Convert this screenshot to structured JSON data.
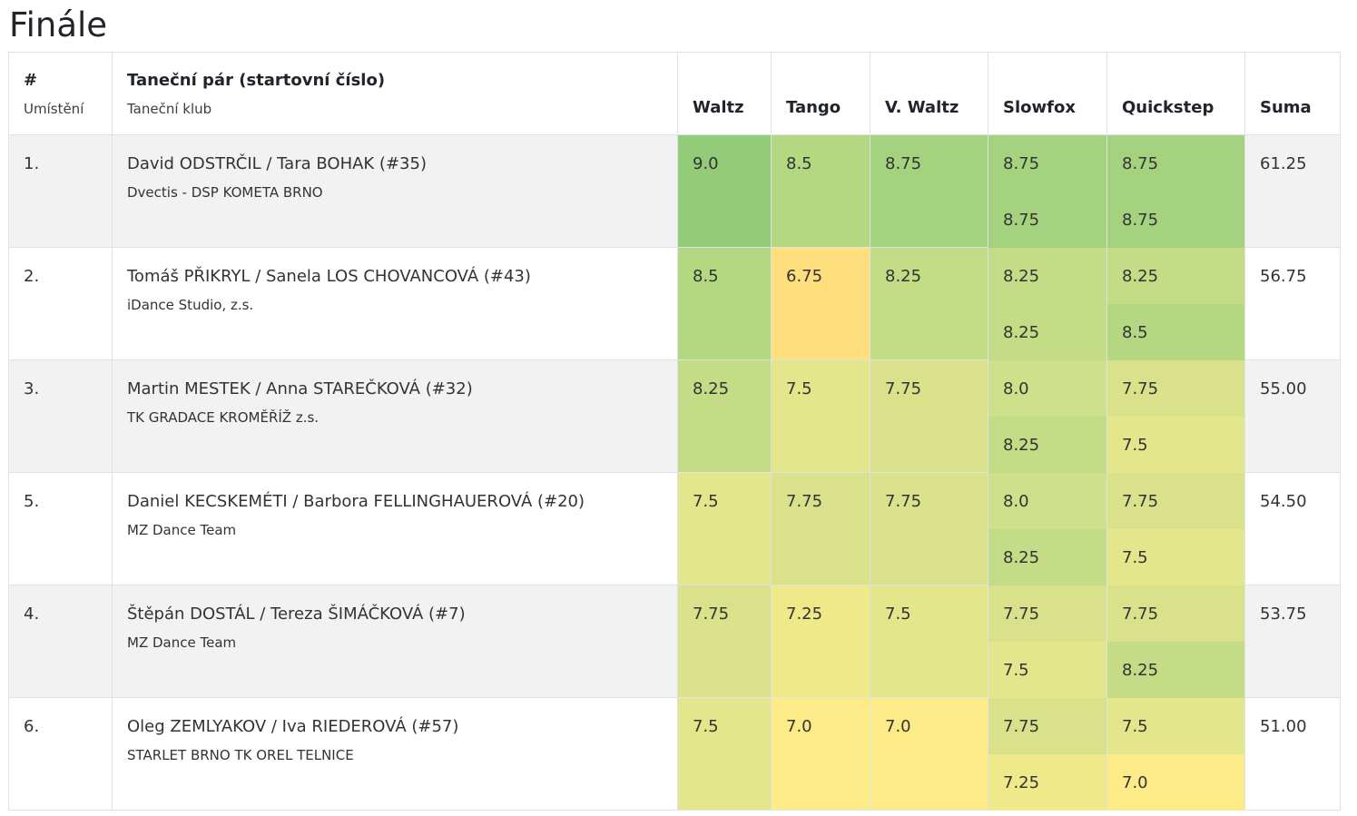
{
  "title": "Finále",
  "header": {
    "place_label": "#",
    "place_sub": "Umístění",
    "pair_label": "Taneční pár (startovní číslo)",
    "pair_sub": "Taneční klub",
    "dances": [
      "Waltz",
      "Tango",
      "V. Waltz",
      "Slowfox",
      "Quickstep"
    ],
    "sum_label": "Suma"
  },
  "colors": {
    "9.0": "#93cb78",
    "8.75": "#a5d27f",
    "8.5": "#b4d882",
    "8.25": "#c3dc85",
    "8.0": "#cfe08a",
    "7.75": "#d9e28a",
    "7.5": "#e3e68a",
    "7.25": "#f0e989",
    "7.0": "#fdeb88",
    "6.75": "#ffdf7d"
  },
  "rows": [
    {
      "rank": "1.",
      "pair": "David ODSTRČIL / Tara BOHAK (#35)",
      "club": "Dvectis - DSP KOMETA BRNO",
      "scores": [
        [
          "9.0"
        ],
        [
          "8.5"
        ],
        [
          "8.75"
        ],
        [
          "8.75",
          "8.75"
        ],
        [
          "8.75",
          "8.75"
        ]
      ],
      "sum": "61.25"
    },
    {
      "rank": "2.",
      "pair": "Tomáš PŘIKRYL / Sanela LOS CHOVANCOVÁ (#43)",
      "club": "iDance Studio, z.s.",
      "scores": [
        [
          "8.5"
        ],
        [
          "6.75"
        ],
        [
          "8.25"
        ],
        [
          "8.25",
          "8.25"
        ],
        [
          "8.25",
          "8.5"
        ]
      ],
      "sum": "56.75"
    },
    {
      "rank": "3.",
      "pair": "Martin MESTEK / Anna STAREČKOVÁ (#32)",
      "club": "TK GRADACE KROMĚŘÍŽ z.s.",
      "scores": [
        [
          "8.25"
        ],
        [
          "7.5"
        ],
        [
          "7.75"
        ],
        [
          "8.0",
          "8.25"
        ],
        [
          "7.75",
          "7.5"
        ]
      ],
      "sum": "55.00"
    },
    {
      "rank": "5.",
      "pair": "Daniel KECSKEMÉTI / Barbora FELLINGHAUEROVÁ (#20)",
      "club": "MZ Dance Team",
      "scores": [
        [
          "7.5"
        ],
        [
          "7.75"
        ],
        [
          "7.75"
        ],
        [
          "8.0",
          "8.25"
        ],
        [
          "7.75",
          "7.5"
        ]
      ],
      "sum": "54.50"
    },
    {
      "rank": "4.",
      "pair": "Štěpán DOSTÁL / Tereza ŠIMÁČKOVÁ (#7)",
      "club": "MZ Dance Team",
      "scores": [
        [
          "7.75"
        ],
        [
          "7.25"
        ],
        [
          "7.5"
        ],
        [
          "7.75",
          "7.5"
        ],
        [
          "7.75",
          "8.25"
        ]
      ],
      "sum": "53.75"
    },
    {
      "rank": "6.",
      "pair": "Oleg ZEMLYAKOV / Iva RIEDEROVÁ (#57)",
      "club": "STARLET BRNO TK OREL TELNICE",
      "scores": [
        [
          "7.5"
        ],
        [
          "7.0"
        ],
        [
          "7.0"
        ],
        [
          "7.75",
          "7.25"
        ],
        [
          "7.5",
          "7.0"
        ]
      ],
      "sum": "51.00"
    }
  ]
}
